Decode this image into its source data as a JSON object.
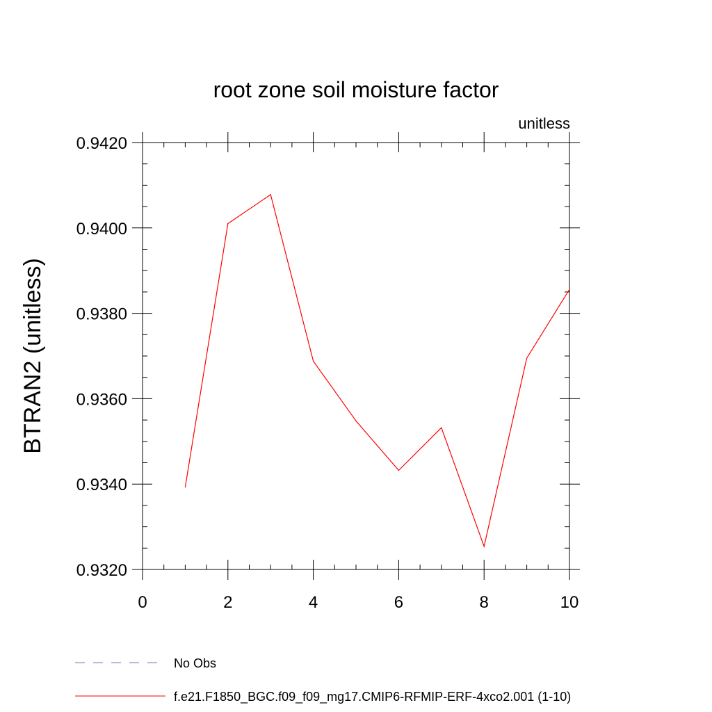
{
  "chart_data": {
    "type": "line",
    "title": "root zone soil moisture factor",
    "units_label": "unitless",
    "xlabel": "",
    "ylabel": "BTRAN2  (unitless)",
    "xlim": [
      0,
      10
    ],
    "ylim": [
      0.932,
      0.942
    ],
    "x_ticks": [
      0,
      2,
      4,
      6,
      8,
      10
    ],
    "x_tick_labels": [
      "0",
      "2",
      "4",
      "6",
      "8",
      "10"
    ],
    "y_ticks": [
      0.932,
      0.934,
      0.936,
      0.938,
      0.94,
      0.942
    ],
    "y_tick_labels": [
      "0.9320",
      "0.9340",
      "0.9360",
      "0.9380",
      "0.9400",
      "0.9420"
    ],
    "x_minor_step": 0.5,
    "y_minor_step": 0.0005,
    "grid": false,
    "series": [
      {
        "name": "f.e21.F1850_BGC.f09_f09_mg17.CMIP6-RFMIP-ERF-4xco2.001 (1-10)",
        "color": "#ff0000",
        "x": [
          1,
          2,
          3,
          4,
          5,
          6,
          7,
          8,
          9,
          10
        ],
        "values": [
          0.93393,
          0.9401,
          0.94078,
          0.93688,
          0.93548,
          0.93432,
          0.93532,
          0.93254,
          0.93695,
          0.93856
        ]
      }
    ],
    "legend": [
      {
        "label": "No Obs",
        "color": "#7b6fb0",
        "style": "dashed"
      },
      {
        "label": "f.e21.F1850_BGC.f09_f09_mg17.CMIP6-RFMIP-ERF-4xco2.001 (1-10)",
        "color": "#ff0000",
        "style": "solid"
      }
    ],
    "legend_position": "bottom-left"
  }
}
